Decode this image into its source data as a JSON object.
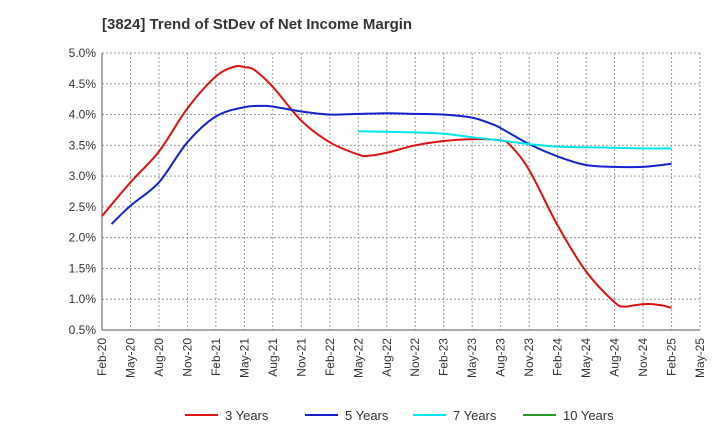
{
  "chart_data": {
    "type": "line",
    "title": "[3824]  Trend of StDev of Net Income Margin",
    "xlabel": "",
    "ylabel": "",
    "ylim": [
      0.5,
      5.0
    ],
    "yticks": [
      "0.5%",
      "1.0%",
      "1.5%",
      "2.0%",
      "2.5%",
      "3.0%",
      "3.5%",
      "4.0%",
      "4.5%",
      "5.0%"
    ],
    "ytick_values": [
      0.5,
      1.0,
      1.5,
      2.0,
      2.5,
      3.0,
      3.5,
      4.0,
      4.5,
      5.0
    ],
    "categories": [
      "Feb-20",
      "May-20",
      "Aug-20",
      "Nov-20",
      "Feb-21",
      "May-21",
      "Aug-21",
      "Nov-21",
      "Feb-22",
      "May-22",
      "Aug-22",
      "Nov-22",
      "Feb-23",
      "May-23",
      "Aug-23",
      "Nov-23",
      "Feb-24",
      "May-24",
      "Aug-24",
      "Nov-24",
      "Feb-25",
      "May-25"
    ],
    "grid": true,
    "legend_position": "bottom",
    "series": [
      {
        "name": "3 Years",
        "color": "#dd1111",
        "points": [
          [
            "Feb-20",
            2.35
          ],
          [
            "May-20",
            2.9
          ],
          [
            "Aug-20",
            3.4
          ],
          [
            "Nov-20",
            4.1
          ],
          [
            "Feb-21",
            4.62
          ],
          [
            "Apr-21",
            4.78
          ],
          [
            "May-21",
            4.77
          ],
          [
            "Jun-21",
            4.73
          ],
          [
            "Aug-21",
            4.45
          ],
          [
            "Nov-21",
            3.9
          ],
          [
            "Feb-22",
            3.55
          ],
          [
            "May-22",
            3.35
          ],
          [
            "Jun-22",
            3.33
          ],
          [
            "Aug-22",
            3.38
          ],
          [
            "Nov-22",
            3.5
          ],
          [
            "Feb-23",
            3.57
          ],
          [
            "May-23",
            3.6
          ],
          [
            "Aug-23",
            3.58
          ],
          [
            "Sep-23",
            3.5
          ],
          [
            "Nov-23",
            3.1
          ],
          [
            "Feb-24",
            2.2
          ],
          [
            "May-24",
            1.45
          ],
          [
            "Aug-24",
            0.95
          ],
          [
            "Sep-24",
            0.88
          ],
          [
            "Oct-24",
            0.9
          ],
          [
            "Nov-24",
            0.92
          ],
          [
            "Dec-24",
            0.92
          ],
          [
            "Jan-25",
            0.9
          ],
          [
            "Feb-25",
            0.86
          ]
        ]
      },
      {
        "name": "5 Years",
        "color": "#1122cc",
        "points": [
          [
            "Mar-20",
            2.22
          ],
          [
            "May-20",
            2.52
          ],
          [
            "Aug-20",
            2.9
          ],
          [
            "Nov-20",
            3.55
          ],
          [
            "Feb-21",
            3.97
          ],
          [
            "May-21",
            4.12
          ],
          [
            "Jul-21",
            4.14
          ],
          [
            "Aug-21",
            4.13
          ],
          [
            "Nov-21",
            4.05
          ],
          [
            "Feb-22",
            4.0
          ],
          [
            "May-22",
            4.01
          ],
          [
            "Aug-22",
            4.02
          ],
          [
            "Nov-22",
            4.01
          ],
          [
            "Feb-23",
            4.0
          ],
          [
            "May-23",
            3.95
          ],
          [
            "Jul-23",
            3.85
          ],
          [
            "Aug-23",
            3.78
          ],
          [
            "Nov-23",
            3.52
          ],
          [
            "Feb-24",
            3.32
          ],
          [
            "May-24",
            3.18
          ],
          [
            "Aug-24",
            3.15
          ],
          [
            "Nov-24",
            3.15
          ],
          [
            "Feb-25",
            3.2
          ]
        ]
      },
      {
        "name": "7 Years",
        "color": "#00e5ee",
        "points": [
          [
            "May-22",
            3.73
          ],
          [
            "Aug-22",
            3.72
          ],
          [
            "Nov-22",
            3.71
          ],
          [
            "Feb-23",
            3.69
          ],
          [
            "May-23",
            3.63
          ],
          [
            "Aug-23",
            3.58
          ],
          [
            "Nov-23",
            3.52
          ],
          [
            "Feb-24",
            3.48
          ],
          [
            "May-24",
            3.47
          ],
          [
            "Aug-24",
            3.46
          ],
          [
            "Nov-24",
            3.45
          ],
          [
            "Feb-25",
            3.45
          ]
        ]
      },
      {
        "name": "10 Years",
        "color": "#229922",
        "points": []
      }
    ]
  }
}
